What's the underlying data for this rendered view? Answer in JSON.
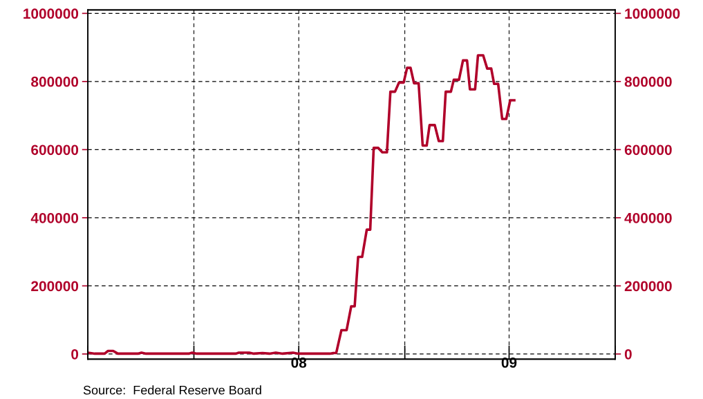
{
  "chart_data": {
    "type": "line",
    "x": [
      "2007-07-01",
      "2007-07-13",
      "2007-07-30",
      "2007-08-05",
      "2007-08-14",
      "2007-08-22",
      "2007-09-26",
      "2007-10-02",
      "2007-10-10",
      "2007-12-23",
      "2007-12-29",
      "2008-01-06",
      "2008-03-14",
      "2008-03-19",
      "2008-04-06",
      "2008-04-14",
      "2008-04-29",
      "2008-05-11",
      "2008-05-22",
      "2008-06-03",
      "2008-06-21",
      "2008-06-30",
      "2008-08-24",
      "2008-08-30",
      "2008-09-04",
      "2008-09-13",
      "2008-09-22",
      "2008-09-30",
      "2008-10-06",
      "2008-10-12",
      "2008-10-19",
      "2008-10-27",
      "2008-11-02",
      "2008-11-08",
      "2008-11-16",
      "2008-11-23",
      "2008-12-01",
      "2008-12-07",
      "2008-12-15",
      "2008-12-22",
      "2008-12-30",
      "2009-01-05",
      "2009-01-11",
      "2009-01-17",
      "2009-01-25",
      "2009-02-01",
      "2009-02-08",
      "2009-02-13",
      "2009-02-22",
      "2009-03-01",
      "2009-03-08",
      "2009-03-13",
      "2009-03-22",
      "2009-03-27",
      "2009-04-05",
      "2009-04-12",
      "2009-04-19",
      "2009-04-24",
      "2009-05-03",
      "2009-05-08",
      "2009-05-17",
      "2009-05-24",
      "2009-05-31",
      "2009-06-05",
      "2009-06-12",
      "2009-06-19",
      "2009-06-26",
      "2009-07-03",
      "2009-07-10"
    ],
    "series": [
      {
        "color": "#b0002a",
        "values": [
          4000,
          1000,
          1000,
          9000,
          9000,
          1000,
          1000,
          4000,
          1000,
          1000,
          4000,
          1000,
          1000,
          4000,
          4000,
          1000,
          3000,
          1000,
          4000,
          1000,
          4000,
          1000,
          1000,
          3000,
          3000,
          70000,
          70000,
          140000,
          140000,
          285000,
          285000,
          365000,
          365000,
          605000,
          605000,
          592000,
          592000,
          770000,
          770000,
          797000,
          797000,
          840000,
          840000,
          795000,
          795000,
          612000,
          612000,
          672000,
          672000,
          625000,
          625000,
          770000,
          770000,
          805000,
          805000,
          862000,
          862000,
          777000,
          777000,
          877000,
          877000,
          838000,
          838000,
          793000,
          793000,
          690000,
          690000,
          745000,
          745000
        ]
      }
    ],
    "xlim": [
      "2007-07-01",
      "2010-01-01"
    ],
    "xticks": [
      {
        "value": "2007-07-01",
        "label": null
      },
      {
        "value": "2008-01-01",
        "label": null
      },
      {
        "value": "2008-07-01",
        "label": "08"
      },
      {
        "value": "2009-01-01",
        "label": null
      },
      {
        "value": "2009-07-01",
        "label": "09"
      },
      {
        "value": "2010-01-01",
        "label": null
      }
    ],
    "ylim": [
      -15000,
      1010000
    ],
    "yticks": [
      0,
      200000,
      400000,
      600000,
      800000,
      1000000
    ],
    "y2lim": [
      -15000,
      1010000
    ],
    "y2ticks": [
      0,
      200000,
      400000,
      600000,
      800000,
      1000000
    ],
    "grid": true,
    "line_style": "solid",
    "annotations": [
      "Source:  Federal Reserve Board"
    ]
  }
}
